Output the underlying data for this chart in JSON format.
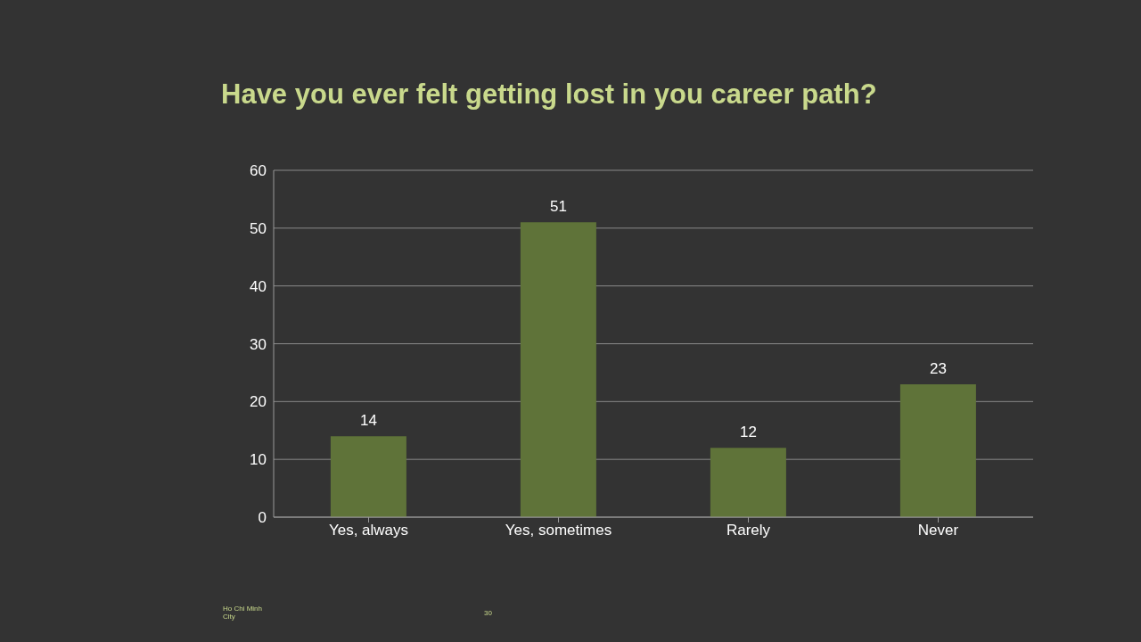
{
  "chart_data": {
    "type": "bar",
    "title": "Have you ever felt getting lost in you career path?",
    "categories": [
      "Yes, always",
      "Yes, sometimes",
      "Rarely",
      "Never"
    ],
    "values": [
      14,
      51,
      12,
      23
    ],
    "color": "#5f7339",
    "ylim": [
      0,
      60
    ],
    "yticks": [
      0,
      10,
      20,
      30,
      40,
      50,
      60
    ],
    "grid": "y",
    "data_labels": true,
    "annotations": [
      "Ho Chi Minh City",
      "30"
    ]
  }
}
